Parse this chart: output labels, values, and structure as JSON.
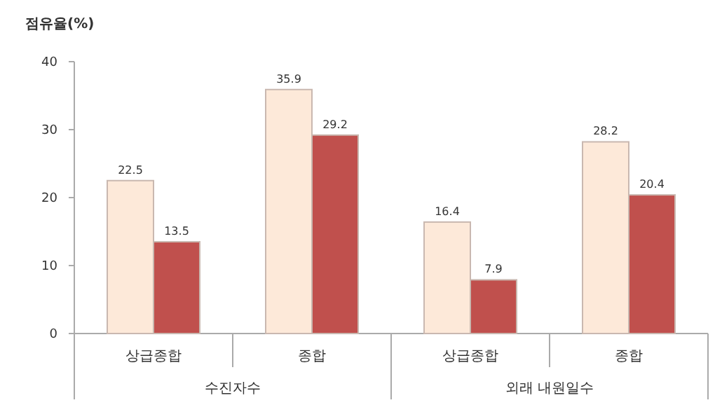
{
  "chart_data": {
    "type": "bar",
    "ylabel": "점유율(%)",
    "categories": [
      "상급종합",
      "종합",
      "상급종합",
      "종합"
    ],
    "series": [
      {
        "color": "#fde9d9",
        "values": [
          22.5,
          35.9,
          16.4,
          28.2
        ]
      },
      {
        "color": "#c0504d",
        "values": [
          13.5,
          29.2,
          7.9,
          20.4
        ]
      }
    ],
    "annotations": [
      "수진자수",
      "외래 내원일수"
    ],
    "ylim": [
      0,
      40
    ],
    "yticks": [
      0,
      10,
      20,
      30,
      40
    ],
    "data_labels": true
  }
}
